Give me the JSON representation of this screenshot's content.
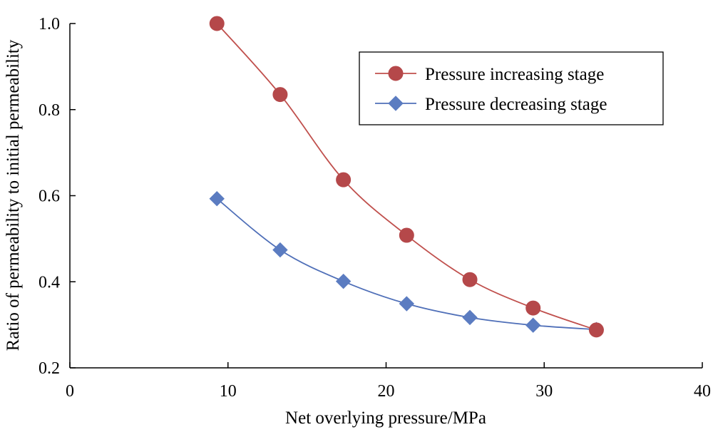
{
  "chart_data": {
    "type": "line",
    "title": "",
    "xlabel": "Net overlying pressure/MPa",
    "ylabel": "Ratio of permeability to initial permeability",
    "xlim": [
      0,
      40
    ],
    "ylim": [
      0.2,
      1.0
    ],
    "x_ticks": [
      0,
      10,
      20,
      30,
      40
    ],
    "y_ticks": [
      0.2,
      0.4,
      0.6,
      0.8,
      1.0
    ],
    "x_tick_labels": [
      "0",
      "10",
      "20",
      "30",
      "40"
    ],
    "y_tick_labels": [
      "0.2",
      "0.4",
      "0.6",
      "0.8",
      "1.0"
    ],
    "grid": false,
    "legend_position": "top-right",
    "series": [
      {
        "name": "Pressure increasing stage",
        "marker": "circle",
        "color": "#c0504d",
        "marker_color": "#b5484a",
        "x": [
          9.3,
          13.3,
          17.3,
          21.3,
          25.3,
          29.3,
          33.3
        ],
        "values": [
          1.0,
          0.835,
          0.637,
          0.508,
          0.405,
          0.339,
          0.288
        ]
      },
      {
        "name": "Pressure decreasing stage",
        "marker": "diamond",
        "color": "#4f6fb8",
        "marker_color": "#5b7cc1",
        "x": [
          9.3,
          13.3,
          17.3,
          21.3,
          25.3,
          29.3,
          33.3
        ],
        "values": [
          0.593,
          0.474,
          0.401,
          0.349,
          0.317,
          0.299,
          0.289
        ]
      }
    ]
  }
}
